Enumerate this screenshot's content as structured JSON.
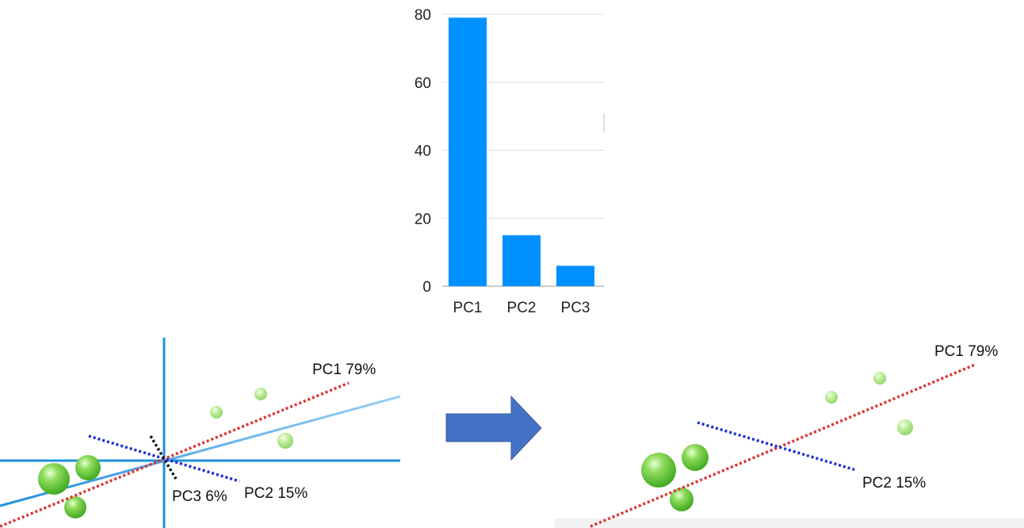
{
  "chart_data": {
    "type": "bar",
    "categories": [
      "PC1",
      "PC2",
      "PC3"
    ],
    "values": [
      79,
      15,
      6
    ],
    "ylim": [
      0,
      80
    ],
    "yticks": [
      0,
      20,
      40,
      60,
      80
    ],
    "grid": true,
    "colors": {
      "bar": "#0090ff",
      "grid": "#dddddd",
      "axis": "#999999"
    }
  },
  "diagram": {
    "left_panel": {
      "labels": {
        "pc1": "PC1 79%",
        "pc2": "PC2 15%",
        "pc3": "PC3 6%"
      }
    },
    "right_panel": {
      "labels": {
        "pc1": "PC1 79%",
        "pc2": "PC2 15%"
      }
    },
    "arrow_icon": "right-arrow-icon",
    "colors": {
      "pc1_line": "#e03131",
      "pc2_line": "#1f2fd6",
      "pc3_line": "#111111",
      "axes": "#1f8fe0",
      "spheres": "#62cc3c",
      "arrow": "#4472c4"
    }
  }
}
